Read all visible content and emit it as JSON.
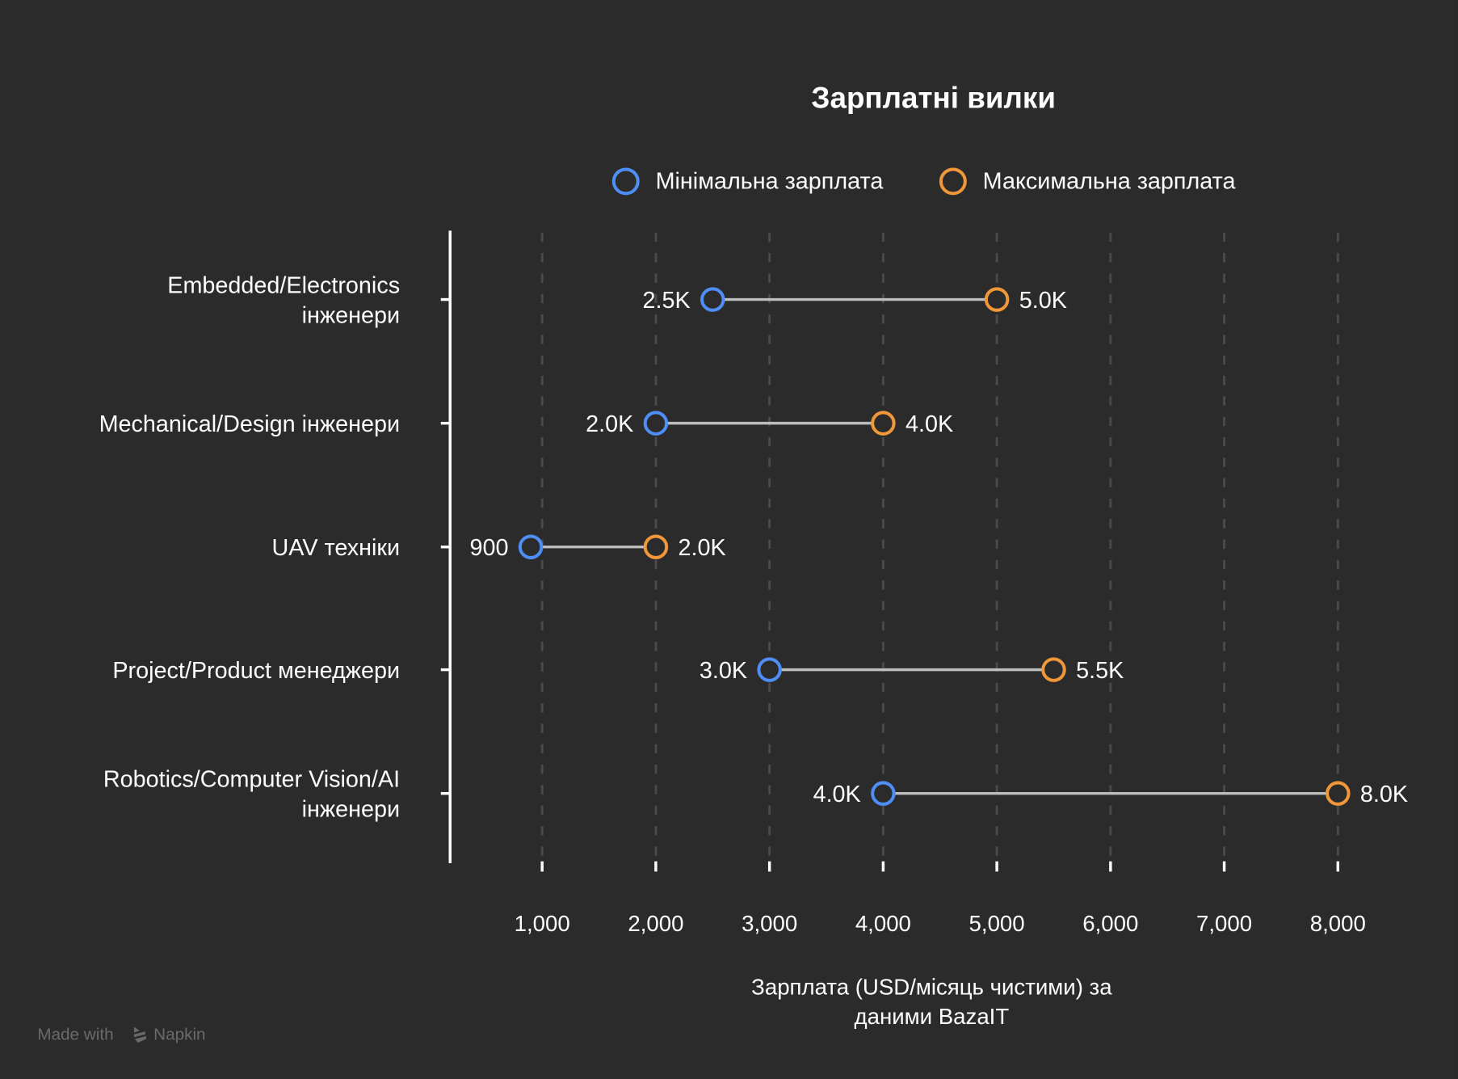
{
  "chart_data": {
    "type": "dumbbell",
    "title": "Зарплатні вилки",
    "legend": {
      "placement": "top",
      "entries": [
        {
          "name": "Мінімальна зарплата",
          "color": "#4f8ef7"
        },
        {
          "name": "Максимальна зарплата",
          "color": "#f0973a"
        }
      ]
    },
    "categories": [
      [
        "Embedded/Electronics",
        "інженери"
      ],
      [
        "Mechanical/Design інженери"
      ],
      [
        "UAV техніки"
      ],
      [
        "Project/Product менеджери"
      ],
      [
        "Robotics/Computer Vision/AI",
        "інженери"
      ]
    ],
    "series": [
      {
        "name": "Мінімальна зарплата",
        "values": [
          2500,
          2000,
          900,
          3000,
          4000
        ],
        "labels": [
          "2.5K",
          "2.0K",
          "900",
          "3.0K",
          "4.0K"
        ]
      },
      {
        "name": "Максимальна зарплата",
        "values": [
          5000,
          4000,
          2000,
          5500,
          8000
        ],
        "labels": [
          "5.0K",
          "4.0K",
          "2.0K",
          "5.5K",
          "8.0K"
        ]
      }
    ],
    "xlabel": [
      "Зарплата (USD/місяць чистими) за",
      "даними BazaIT"
    ],
    "xticks": [
      1000,
      2000,
      3000,
      4000,
      5000,
      6000,
      7000,
      8000
    ],
    "xtick_labels": [
      "1,000",
      "2,000",
      "3,000",
      "4,000",
      "5,000",
      "6,000",
      "7,000",
      "8,000"
    ],
    "xlim": [
      1000,
      8000
    ],
    "grid": "vertical dashed",
    "colors": {
      "background": "#2b2b2b",
      "connector": "#bdbdbd",
      "grid": "#4a4a4a"
    }
  },
  "watermark": {
    "prefix": "Made with",
    "brand": "Napkin"
  }
}
